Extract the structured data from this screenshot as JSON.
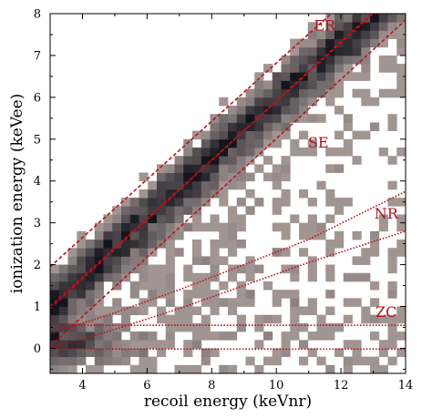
{
  "chart_data": {
    "type": "heatmap",
    "title": "",
    "xlabel": "recoil energy (keVnr)",
    "ylabel": "ionization energy (keVee)",
    "xlim": [
      3,
      14
    ],
    "ylim": [
      -0.6,
      8
    ],
    "xticks": [
      4,
      6,
      8,
      10,
      12,
      14
    ],
    "yticks": [
      0,
      1,
      2,
      3,
      4,
      5,
      6,
      7,
      8
    ],
    "grid": false,
    "legend": "none",
    "bins": {
      "x_width": 0.275,
      "y_width": 0.2
    },
    "colors": {
      "low_count": "#b3a5a1",
      "high_count": "#14141c",
      "band_line": "#c0101a",
      "label": "#a8141d"
    },
    "band_labels": [
      {
        "text": "ER",
        "x": 11.5,
        "y": 7.6
      },
      {
        "text": "SE",
        "x": 11.3,
        "y": 4.8
      },
      {
        "text": "NR",
        "x": 13.4,
        "y": 3.1
      },
      {
        "text": "ZC",
        "x": 13.4,
        "y": 0.75
      }
    ],
    "bands": [
      {
        "name": "ER",
        "style": "dashed",
        "x": [
          3,
          14
        ],
        "y": [
          1.95,
          9.6
        ]
      },
      {
        "name": "ER",
        "style": "dashed",
        "x": [
          3,
          14
        ],
        "y": [
          1.0,
          8.7
        ]
      },
      {
        "name": "SE",
        "style": "dashed",
        "x": [
          3,
          14
        ],
        "y": [
          0.95,
          8.75
        ]
      },
      {
        "name": "SE",
        "style": "dashed",
        "x": [
          3,
          14
        ],
        "y": [
          0.05,
          7.85
        ]
      },
      {
        "name": "NR",
        "style": "dotted",
        "x": [
          3,
          5,
          7,
          9,
          11,
          14
        ],
        "y": [
          0.35,
          0.85,
          1.4,
          2.0,
          2.6,
          3.75
        ]
      },
      {
        "name": "NR",
        "style": "dotted",
        "x": [
          3,
          5,
          7,
          9,
          11,
          14
        ],
        "y": [
          0.0,
          0.45,
          0.95,
          1.5,
          2.05,
          2.8
        ]
      },
      {
        "name": "ZC",
        "style": "dotted",
        "x": [
          3,
          14
        ],
        "y": [
          0.55,
          0.55
        ]
      },
      {
        "name": "ZC",
        "style": "dotted",
        "x": [
          3,
          14
        ],
        "y": [
          -0.02,
          -0.02
        ]
      }
    ]
  }
}
